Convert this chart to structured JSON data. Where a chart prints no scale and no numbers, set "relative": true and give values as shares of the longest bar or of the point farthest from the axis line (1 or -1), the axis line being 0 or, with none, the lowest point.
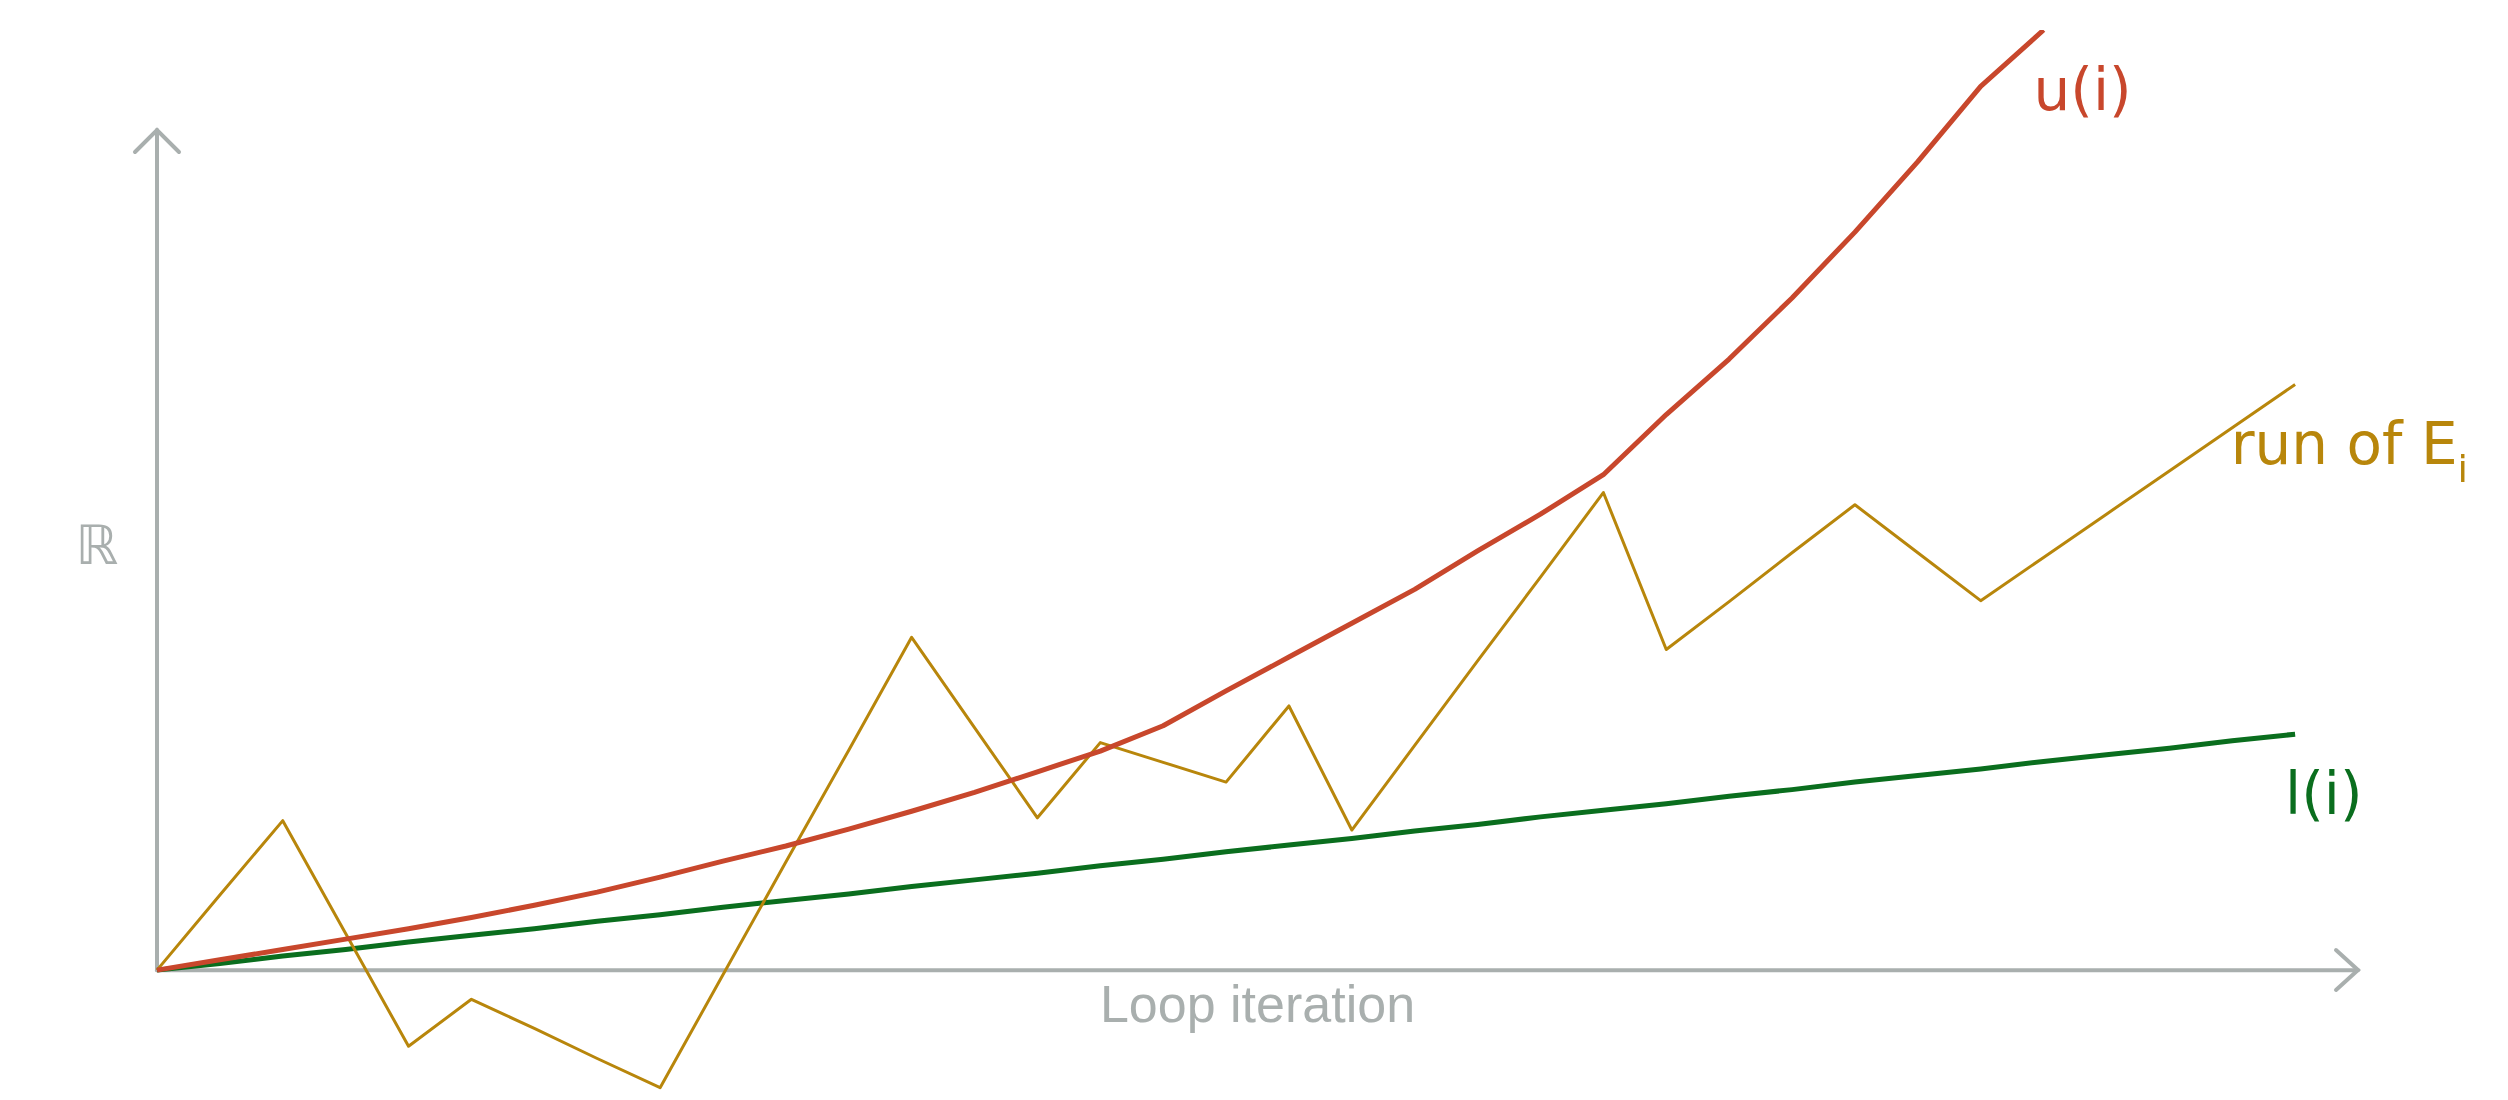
{
  "chart_data": {
    "type": "line",
    "relative": true,
    "xlabel": "Loop iteration",
    "ylabel": "ℝ",
    "legend": false,
    "marker": "none",
    "line_style": "solid",
    "categories": [
      null,
      null,
      null,
      null,
      null,
      null,
      null,
      null,
      null,
      null,
      null,
      null,
      null,
      null,
      null,
      null,
      null,
      null,
      null,
      null,
      null,
      null,
      null,
      null,
      null,
      null,
      null,
      null,
      null,
      null,
      null,
      null,
      null,
      null,
      null,
      null
    ],
    "series": [
      {
        "name": "u(i)",
        "color": "#c8472c",
        "values": [
          0,
          0.011,
          0.022,
          0.033,
          0.044,
          0.056,
          0.069,
          0.083,
          0.099,
          0.116,
          0.132,
          0.15,
          0.169,
          0.189,
          0.211,
          0.233,
          0.26,
          0.297,
          0.333,
          0.369,
          0.405,
          0.446,
          0.485,
          0.527,
          0.591,
          0.65,
          0.715,
          0.785,
          0.86,
          0.94,
          1.0,
          null,
          null,
          null,
          null,
          null
        ]
      },
      {
        "name": "run of E$_{i}$",
        "color": "#b8860b",
        "values": [
          0,
          0.08,
          0.159,
          0.039,
          -0.081,
          -0.031,
          -0.062,
          -0.094,
          -0.125,
          -0.005,
          0.115,
          0.234,
          0.354,
          0.258,
          0.162,
          0.242,
          0.221,
          0.2,
          0.281,
          0.149,
          0.239,
          0.329,
          0.418,
          0.508,
          0.341,
          0.392,
          0.444,
          0.495,
          0.444,
          0.393,
          0.439,
          0.485,
          0.531,
          0.577,
          0.623,
          null
        ]
      },
      {
        "name": "l(i)",
        "color": "#0a6e1e",
        "values": [
          0,
          0.007,
          0.015,
          0.022,
          0.03,
          0.037,
          0.044,
          0.052,
          0.059,
          0.067,
          0.074,
          0.081,
          0.089,
          0.096,
          0.103,
          0.111,
          0.118,
          0.126,
          0.133,
          0.14,
          0.148,
          0.155,
          0.163,
          0.17,
          0.177,
          0.185,
          0.192,
          0.2,
          0.207,
          0.214,
          0.222,
          0.229,
          0.236,
          0.244,
          0.251,
          null
        ]
      }
    ]
  }
}
